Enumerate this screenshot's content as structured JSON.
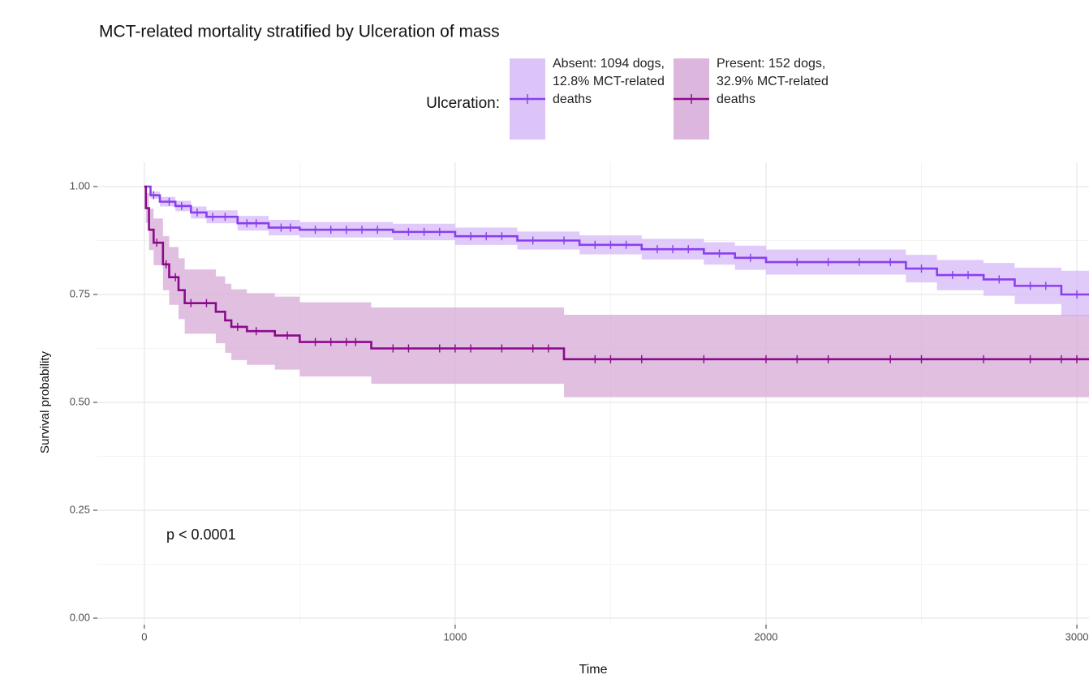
{
  "chart_data": {
    "type": "survival",
    "title": "MCT-related mortality stratified by Ulceration of mass",
    "legend_title": "Ulceration:",
    "xlabel": "Time",
    "ylabel": "Survival probability",
    "annotation": "p < 0.0001",
    "xlim": [
      -151,
      3039
    ],
    "ylim": [
      -0.015,
      1.0564
    ],
    "xticks": [
      0,
      1000,
      2000,
      3000
    ],
    "yticks": [
      {
        "value": 0,
        "label": "0.00"
      },
      {
        "value": 0.25,
        "label": "0.25"
      },
      {
        "value": 0.5,
        "label": "0.50"
      },
      {
        "value": 0.75,
        "label": "0.75"
      },
      {
        "value": 1,
        "label": "1.00"
      }
    ],
    "minor_xticks": [
      500,
      1500,
      2500
    ],
    "minor_yticks": [
      0.125,
      0.375,
      0.625,
      0.875
    ],
    "grid": true,
    "series": [
      {
        "name": "Absent: 1094 dogs, 12.8% MCT-related deaths",
        "color": "#8a3ff0",
        "band_color": "#d6b8f7",
        "x": [
          0,
          20,
          50,
          100,
          150,
          200,
          300,
          400,
          500,
          800,
          1000,
          1200,
          1400,
          1600,
          1800,
          1900,
          2000,
          2450,
          2550,
          2700,
          2800,
          2950
        ],
        "values": [
          1,
          0.98,
          0.965,
          0.955,
          0.94,
          0.93,
          0.915,
          0.905,
          0.9,
          0.895,
          0.885,
          0.875,
          0.865,
          0.855,
          0.845,
          0.835,
          0.825,
          0.81,
          0.795,
          0.785,
          0.77,
          0.75
        ],
        "lower": [
          1,
          0.972,
          0.954,
          0.943,
          0.926,
          0.915,
          0.898,
          0.887,
          0.882,
          0.876,
          0.865,
          0.854,
          0.843,
          0.831,
          0.819,
          0.807,
          0.796,
          0.778,
          0.76,
          0.747,
          0.728,
          0.7
        ],
        "upper": [
          1,
          0.988,
          0.976,
          0.967,
          0.954,
          0.945,
          0.932,
          0.923,
          0.918,
          0.914,
          0.905,
          0.896,
          0.887,
          0.879,
          0.871,
          0.863,
          0.854,
          0.842,
          0.83,
          0.823,
          0.812,
          0.805
        ],
        "censor": [
          30,
          80,
          120,
          170,
          220,
          260,
          330,
          360,
          440,
          470,
          550,
          600,
          650,
          700,
          750,
          850,
          900,
          950,
          1050,
          1100,
          1150,
          1250,
          1350,
          1450,
          1500,
          1550,
          1650,
          1700,
          1750,
          1850,
          1950,
          2100,
          2200,
          2300,
          2400,
          2500,
          2600,
          2650,
          2750,
          2850,
          2900,
          3000
        ]
      },
      {
        "name": "Present: 152 dogs, 32.9% MCT-related deaths",
        "color": "#8b0a8b",
        "band_color": "#d7a9d7",
        "x": [
          0,
          5,
          15,
          30,
          60,
          80,
          110,
          130,
          230,
          260,
          280,
          330,
          420,
          500,
          730,
          1350
        ],
        "values": [
          1,
          0.95,
          0.9,
          0.87,
          0.82,
          0.79,
          0.76,
          0.73,
          0.71,
          0.69,
          0.675,
          0.665,
          0.655,
          0.64,
          0.625,
          0.6
        ],
        "lower": [
          1,
          0.916,
          0.853,
          0.818,
          0.76,
          0.726,
          0.693,
          0.659,
          0.637,
          0.615,
          0.598,
          0.587,
          0.576,
          0.56,
          0.543,
          0.512
        ],
        "upper": [
          1,
          0.985,
          0.949,
          0.926,
          0.885,
          0.86,
          0.834,
          0.808,
          0.792,
          0.775,
          0.762,
          0.753,
          0.745,
          0.732,
          0.72,
          0.703
        ],
        "censor": [
          40,
          70,
          100,
          150,
          200,
          300,
          360,
          460,
          550,
          600,
          650,
          680,
          800,
          850,
          950,
          1000,
          1050,
          1150,
          1250,
          1300,
          1450,
          1500,
          1600,
          1800,
          2000,
          2100,
          2200,
          2400,
          2500,
          2700,
          2850,
          2950,
          3000
        ]
      }
    ]
  }
}
